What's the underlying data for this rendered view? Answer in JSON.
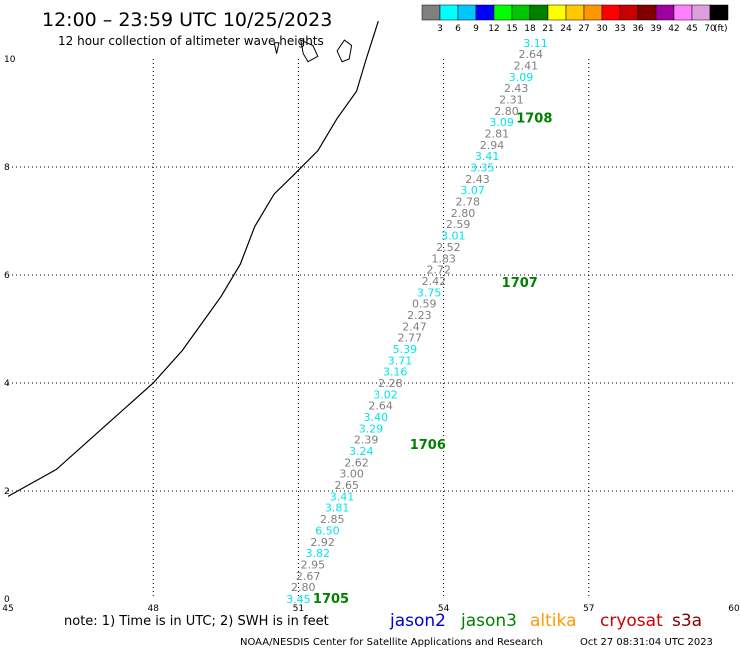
{
  "header": {
    "title": "12:00 – 23:59 UTC 10/25/2023",
    "subtitle": "12 hour collection of altimeter wave heights"
  },
  "colorbar": {
    "colors": [
      "#808080",
      "#00ffff",
      "#00c8ff",
      "#0000ff",
      "#00ff00",
      "#00c800",
      "#008000",
      "#ffff00",
      "#ffc800",
      "#ff9600",
      "#ff0000",
      "#c80000",
      "#800000",
      "#a000a0",
      "#ff80ff",
      "#dda0dd",
      "#000000"
    ],
    "labels": [
      "3",
      "6",
      "9",
      "12",
      "15",
      "18",
      "21",
      "24",
      "27",
      "30",
      "33",
      "36",
      "39",
      "42",
      "45",
      "70"
    ],
    "unit": "(ft)"
  },
  "footer": {
    "note": "note:  1) Time is in UTC;  2) SWH is in feet",
    "satellites": [
      {
        "name": "jason2",
        "color": "#0000cc"
      },
      {
        "name": "jason3",
        "color": "#008000"
      },
      {
        "name": "altika",
        "color": "#ff9900"
      },
      {
        "name": "cryosat",
        "color": "#cc0000"
      },
      {
        "name": "s3a",
        "color": "#800000"
      }
    ],
    "credit": "NOAA/NESDIS Center for Satellite Applications and Research",
    "timestamp": "Oct 27 08:31:04 UTC 2023"
  },
  "chart_data": {
    "type": "scatter",
    "x_axis": {
      "range": [
        45,
        60
      ],
      "ticks": [
        "45",
        "48",
        "51",
        "54",
        "57",
        "60"
      ]
    },
    "y_axis": {
      "range": [
        0,
        10
      ],
      "ticks": [
        "0",
        "2",
        "4",
        "6",
        "8",
        "10"
      ]
    },
    "grid": true,
    "colors": {
      "low": "#808080",
      "mid": "#00e5ee",
      "pass_label": "#008000"
    },
    "points": [
      {
        "x": 51.0,
        "y": 0.0,
        "v": "3.45",
        "c": "mid"
      },
      {
        "x": 51.1,
        "y": 0.22,
        "v": "2.80",
        "c": "low"
      },
      {
        "x": 51.2,
        "y": 0.43,
        "v": "2.67",
        "c": "low"
      },
      {
        "x": 51.3,
        "y": 0.64,
        "v": "2.95",
        "c": "low"
      },
      {
        "x": 51.4,
        "y": 0.85,
        "v": "3.82",
        "c": "mid"
      },
      {
        "x": 51.5,
        "y": 1.06,
        "v": "2.92",
        "c": "low"
      },
      {
        "x": 51.6,
        "y": 1.27,
        "v": "6.50",
        "c": "mid"
      },
      {
        "x": 51.7,
        "y": 1.48,
        "v": "2.85",
        "c": "low"
      },
      {
        "x": 51.8,
        "y": 1.69,
        "v": "3.81",
        "c": "mid"
      },
      {
        "x": 51.9,
        "y": 1.9,
        "v": "3.41",
        "c": "mid"
      },
      {
        "x": 52.0,
        "y": 2.11,
        "v": "2.65",
        "c": "low"
      },
      {
        "x": 52.1,
        "y": 2.32,
        "v": "3.00",
        "c": "low"
      },
      {
        "x": 52.2,
        "y": 2.53,
        "v": "2.62",
        "c": "low"
      },
      {
        "x": 52.3,
        "y": 2.74,
        "v": "3.24",
        "c": "mid"
      },
      {
        "x": 52.4,
        "y": 2.95,
        "v": "2.39",
        "c": "low"
      },
      {
        "x": 52.5,
        "y": 3.16,
        "v": "3.29",
        "c": "mid"
      },
      {
        "x": 52.6,
        "y": 3.37,
        "v": "3.40",
        "c": "mid"
      },
      {
        "x": 52.7,
        "y": 3.58,
        "v": "2.64",
        "c": "low"
      },
      {
        "x": 52.8,
        "y": 3.79,
        "v": "3.02",
        "c": "mid"
      },
      {
        "x": 52.9,
        "y": 4.0,
        "v": "2.28",
        "c": "low"
      },
      {
        "x": 53.0,
        "y": 4.21,
        "v": "3.16",
        "c": "mid"
      },
      {
        "x": 53.1,
        "y": 4.42,
        "v": "3.71",
        "c": "mid"
      },
      {
        "x": 53.2,
        "y": 4.63,
        "v": "5.39",
        "c": "mid"
      },
      {
        "x": 53.3,
        "y": 4.84,
        "v": "2.77",
        "c": "low"
      },
      {
        "x": 53.4,
        "y": 5.05,
        "v": "2.47",
        "c": "low"
      },
      {
        "x": 53.5,
        "y": 5.26,
        "v": "2.23",
        "c": "low"
      },
      {
        "x": 53.6,
        "y": 5.47,
        "v": "0.59",
        "c": "low"
      },
      {
        "x": 53.7,
        "y": 5.68,
        "v": "3.75",
        "c": "mid"
      },
      {
        "x": 53.8,
        "y": 5.89,
        "v": "2.42",
        "c": "low"
      },
      {
        "x": 53.9,
        "y": 6.1,
        "v": "2.72",
        "c": "low"
      },
      {
        "x": 54.0,
        "y": 6.31,
        "v": "1.83",
        "c": "low"
      },
      {
        "x": 54.1,
        "y": 6.52,
        "v": "2.52",
        "c": "low"
      },
      {
        "x": 54.2,
        "y": 6.73,
        "v": "3.01",
        "c": "mid"
      },
      {
        "x": 54.3,
        "y": 6.94,
        "v": "2.59",
        "c": "low"
      },
      {
        "x": 54.4,
        "y": 7.15,
        "v": "2.80",
        "c": "low"
      },
      {
        "x": 54.5,
        "y": 7.36,
        "v": "2.78",
        "c": "low"
      },
      {
        "x": 54.6,
        "y": 7.57,
        "v": "3.07",
        "c": "mid"
      },
      {
        "x": 54.7,
        "y": 7.78,
        "v": "2.43",
        "c": "low"
      },
      {
        "x": 54.8,
        "y": 7.99,
        "v": "3.35",
        "c": "mid"
      },
      {
        "x": 54.9,
        "y": 8.2,
        "v": "3.41",
        "c": "mid"
      },
      {
        "x": 55.0,
        "y": 8.41,
        "v": "2.94",
        "c": "low"
      },
      {
        "x": 55.1,
        "y": 8.62,
        "v": "2.81",
        "c": "low"
      },
      {
        "x": 55.2,
        "y": 8.83,
        "v": "3.09",
        "c": "mid"
      },
      {
        "x": 55.3,
        "y": 9.04,
        "v": "2.80",
        "c": "low"
      },
      {
        "x": 55.4,
        "y": 9.25,
        "v": "2.31",
        "c": "low"
      },
      {
        "x": 55.5,
        "y": 9.46,
        "v": "2.43",
        "c": "low"
      },
      {
        "x": 55.6,
        "y": 9.67,
        "v": "3.09",
        "c": "mid"
      },
      {
        "x": 55.7,
        "y": 9.88,
        "v": "2.41",
        "c": "low"
      },
      {
        "x": 55.8,
        "y": 10.09,
        "v": "2.64",
        "c": "low"
      },
      {
        "x": 55.9,
        "y": 10.3,
        "v": "3.11",
        "c": "mid"
      }
    ],
    "pass_labels": [
      {
        "x": 51.3,
        "y": 0.0,
        "text": "1705"
      },
      {
        "x": 53.3,
        "y": 2.85,
        "text": "1706"
      },
      {
        "x": 55.2,
        "y": 5.85,
        "text": "1707"
      },
      {
        "x": 55.5,
        "y": 8.9,
        "text": "1708"
      }
    ],
    "coastline": [
      [
        45.0,
        1.9
      ],
      [
        46.0,
        2.4
      ],
      [
        47.0,
        3.2
      ],
      [
        48.0,
        4.0
      ],
      [
        48.6,
        4.6
      ],
      [
        49.0,
        5.1
      ],
      [
        49.4,
        5.6
      ],
      [
        49.8,
        6.2
      ],
      [
        50.1,
        6.9
      ],
      [
        50.5,
        7.5
      ],
      [
        50.9,
        7.85
      ],
      [
        51.4,
        8.3
      ],
      [
        51.8,
        8.9
      ],
      [
        52.2,
        9.4
      ],
      [
        52.4,
        10.0
      ],
      [
        52.65,
        10.7
      ]
    ],
    "islands": [
      [
        [
          50.5,
          10.3
        ],
        [
          50.55,
          10.1
        ],
        [
          50.6,
          10.3
        ]
      ],
      [
        [
          51.05,
          10.35
        ],
        [
          51.3,
          10.25
        ],
        [
          51.4,
          10.05
        ],
        [
          51.2,
          9.95
        ],
        [
          51.1,
          10.1
        ]
      ],
      [
        [
          51.8,
          10.15
        ],
        [
          51.95,
          10.35
        ],
        [
          52.1,
          10.25
        ],
        [
          52.05,
          10.0
        ],
        [
          51.9,
          9.95
        ],
        [
          51.85,
          10.05
        ]
      ]
    ]
  }
}
